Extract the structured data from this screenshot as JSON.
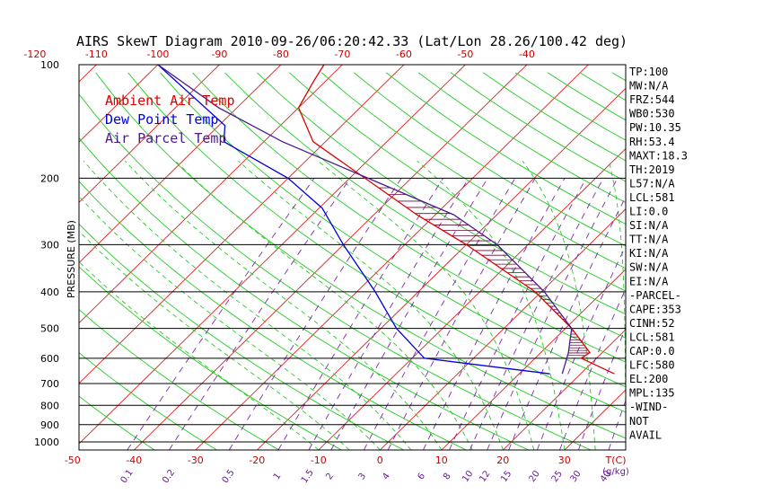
{
  "title": "AIRS SkewT Diagram 2010-09-26/06:20:42.33 (Lat/Lon 28.26/100.42 deg)",
  "y_axis_label": "PRESSURE (MB)",
  "legend": [
    {
      "label": "Ambient Air Temp",
      "color": "#dd0000"
    },
    {
      "label": "Dew Point Temp",
      "color": "#0000dd"
    },
    {
      "label": "Air Parcel Temp",
      "color": "#4a1a8a"
    }
  ],
  "indices": [
    "TP:100",
    "MW:N/A",
    "FRZ:544",
    "WB0:530",
    "PW:10.35",
    "RH:53.4",
    "MAXT:18.3",
    "TH:2019",
    "L57:N/A",
    "LCL:581",
    "LI:0.0",
    "SI:N/A",
    "TT:N/A",
    "KI:N/A",
    "SW:N/A",
    "EI:N/A",
    "-PARCEL-",
    "CAPE:353",
    "CINH:52",
    "LCL:581",
    "CAP:0.0",
    "LFC:580",
    "EL:200",
    "MPL:135",
    "-WIND-",
    "NOT",
    "AVAIL"
  ],
  "chart_data": {
    "type": "line",
    "title": "AIRS SkewT Diagram 2010-09-26/06:20:42.33 (Lat/Lon 28.26/100.42 deg)",
    "xlabel": "T(C)",
    "ylabel": "PRESSURE (MB)",
    "ylim": [
      1000,
      100
    ],
    "pressure_ticks": [
      {
        "p": 100,
        "label": "100"
      },
      {
        "p": 200,
        "label": "200"
      },
      {
        "p": 300,
        "label": "300"
      },
      {
        "p": 400,
        "label": "400"
      },
      {
        "p": 500,
        "label": "500"
      },
      {
        "p": 600,
        "label": "600"
      },
      {
        "p": 700,
        "label": "700"
      },
      {
        "p": 800,
        "label": "800"
      },
      {
        "p": 900,
        "label": "900"
      },
      {
        "p": 1000,
        "label": "1000"
      }
    ],
    "isobars": [
      200,
      300,
      400,
      500,
      600,
      700,
      800,
      900,
      1000
    ],
    "top_temperature_ticks": [
      "-120",
      "-110",
      "-100",
      "-90",
      "-80",
      "-70",
      "-60",
      "-50",
      "-40"
    ],
    "bottom_temperature_ticks": [
      "-50",
      "-40",
      "-30",
      "-20",
      "-10",
      "0",
      "10",
      "20",
      "30"
    ],
    "bottom_temperature_unit": "T(C)",
    "mixing_ratio_labels": [
      "0.1",
      "0.2",
      "0.5",
      "1",
      "1.5",
      "2",
      "3",
      "4",
      "6",
      "8",
      "10",
      "12",
      "15",
      "20",
      "25",
      "30",
      "40"
    ],
    "mixing_ratio_unit": "(g/kg)",
    "series": [
      {
        "name": "Ambient Air Temp",
        "points": [
          {
            "p": 660,
            "t": 25.5
          },
          {
            "p": 600,
            "t": 17.5
          },
          {
            "p": 580,
            "t": 18.0
          },
          {
            "p": 500,
            "t": 11.0
          },
          {
            "p": 400,
            "t": -1.0
          },
          {
            "p": 300,
            "t": -20.0
          },
          {
            "p": 250,
            "t": -33.0
          },
          {
            "p": 200,
            "t": -47.5
          },
          {
            "p": 160,
            "t": -62.0
          },
          {
            "p": 130,
            "t": -70.0
          },
          {
            "p": 110,
            "t": -72.0
          },
          {
            "p": 100,
            "t": -73.0
          }
        ]
      },
      {
        "name": "Dew Point Temp",
        "points": [
          {
            "p": 660,
            "t": 15.0
          },
          {
            "p": 600,
            "t": -8.0
          },
          {
            "p": 500,
            "t": -17.5
          },
          {
            "p": 400,
            "t": -27.0
          },
          {
            "p": 300,
            "t": -40.0
          },
          {
            "p": 240,
            "t": -49.5
          },
          {
            "p": 200,
            "t": -60.0
          },
          {
            "p": 160,
            "t": -76.5
          },
          {
            "p": 145,
            "t": -79.0
          },
          {
            "p": 100,
            "t": -100.0
          }
        ]
      },
      {
        "name": "Air Parcel Temp",
        "points": [
          {
            "p": 660,
            "t": 17.0
          },
          {
            "p": 580,
            "t": 14.5
          },
          {
            "p": 500,
            "t": 11.0
          },
          {
            "p": 400,
            "t": 0.5
          },
          {
            "p": 300,
            "t": -15.0
          },
          {
            "p": 250,
            "t": -27.0
          },
          {
            "p": 200,
            "t": -47.0
          },
          {
            "p": 160,
            "t": -67.0
          },
          {
            "p": 130,
            "t": -83.0
          },
          {
            "p": 100,
            "t": -100.0
          }
        ]
      }
    ]
  }
}
